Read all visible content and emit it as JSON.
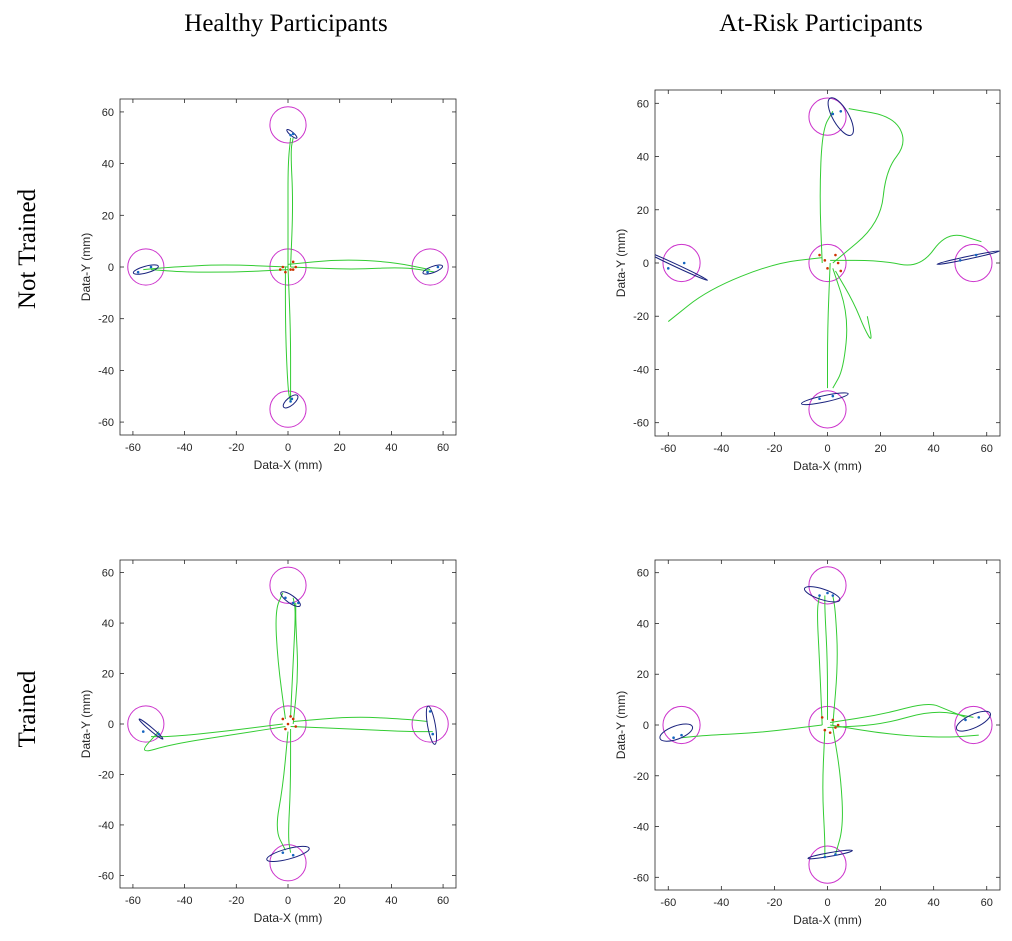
{
  "column_titles": [
    "Healthy Participants",
    "At-Risk Participants"
  ],
  "row_titles": [
    "Not Trained",
    "Trained"
  ],
  "colors": {
    "target_circle": "#cc33cc",
    "trajectory": "#33cc33",
    "ellipse": "#1a237e",
    "points": "#1565c0",
    "center_points": "#cc3300"
  },
  "chart_data": [
    {
      "type": "scatter",
      "panel": "Healthy Participants / Not Trained",
      "xlabel": "Data-X (mm)",
      "ylabel": "Data-Y (mm)",
      "xlim": [
        -65,
        65
      ],
      "ylim": [
        -65,
        65
      ],
      "xticks": [
        -60,
        -40,
        -20,
        0,
        20,
        40,
        60
      ],
      "yticks": [
        -60,
        -40,
        -20,
        0,
        20,
        40,
        60
      ],
      "grid": false,
      "targets": [
        [
          0,
          0
        ],
        [
          0,
          55
        ],
        [
          0,
          -55
        ],
        [
          -55,
          0
        ],
        [
          55,
          0
        ]
      ],
      "target_radius": 7,
      "trajectories": [
        [
          [
            0,
            0
          ],
          [
            0,
            20
          ],
          [
            0,
            40
          ],
          [
            1,
            50
          ]
        ],
        [
          [
            1,
            0
          ],
          [
            2,
            25
          ],
          [
            1,
            45
          ],
          [
            2,
            50
          ]
        ],
        [
          [
            0,
            0
          ],
          [
            1,
            -25
          ],
          [
            1,
            -45
          ],
          [
            1,
            -52
          ]
        ],
        [
          [
            -1,
            0
          ],
          [
            -1,
            -25
          ],
          [
            0,
            -48
          ],
          [
            1,
            -52
          ]
        ],
        [
          [
            0,
            -1
          ],
          [
            -20,
            -2
          ],
          [
            -40,
            -2
          ],
          [
            -53,
            -1
          ]
        ],
        [
          [
            0,
            0
          ],
          [
            -25,
            1
          ],
          [
            -45,
            0
          ],
          [
            -56,
            -1
          ]
        ],
        [
          [
            0,
            1
          ],
          [
            20,
            3
          ],
          [
            40,
            2
          ],
          [
            55,
            -1
          ]
        ],
        [
          [
            1,
            0
          ],
          [
            25,
            -1
          ],
          [
            45,
            0
          ],
          [
            57,
            -2
          ]
        ]
      ],
      "ellipses": [
        {
          "cx": 1.5,
          "cy": 51.5,
          "rx": 2.5,
          "ry": 0.7,
          "angle": -40
        },
        {
          "cx": 1,
          "cy": -52,
          "rx": 3.5,
          "ry": 1.5,
          "angle": 40
        },
        {
          "cx": -55,
          "cy": -1,
          "rx": 5,
          "ry": 1.3,
          "angle": 15
        },
        {
          "cx": 56,
          "cy": -1,
          "rx": 4,
          "ry": 1.2,
          "angle": 20
        }
      ],
      "points": [
        [
          1,
          51
        ],
        [
          2,
          51.5
        ],
        [
          1,
          -52
        ],
        [
          1.5,
          -51
        ],
        [
          -58,
          -2
        ],
        [
          -53,
          0
        ],
        [
          54,
          -2
        ],
        [
          58,
          0
        ]
      ],
      "center_points": [
        [
          -2,
          0
        ],
        [
          2,
          2
        ],
        [
          1,
          -1
        ],
        [
          -1,
          -2
        ],
        [
          2,
          -1
        ],
        [
          3,
          0
        ],
        [
          -3,
          -1
        ]
      ]
    },
    {
      "type": "scatter",
      "panel": "At-Risk Participants / Not Trained",
      "xlabel": "Data-X (mm)",
      "ylabel": "Data-Y (mm)",
      "xlim": [
        -65,
        65
      ],
      "ylim": [
        -65,
        65
      ],
      "xticks": [
        -60,
        -40,
        -20,
        0,
        20,
        40,
        60
      ],
      "yticks": [
        -60,
        -40,
        -20,
        0,
        20,
        40,
        60
      ],
      "grid": false,
      "targets": [
        [
          0,
          0
        ],
        [
          0,
          55
        ],
        [
          0,
          -55
        ],
        [
          -55,
          0
        ],
        [
          55,
          0
        ]
      ],
      "target_radius": 7,
      "trajectories": [
        [
          [
            -2,
            0
          ],
          [
            -3,
            25
          ],
          [
            -2,
            50
          ],
          [
            2,
            57
          ]
        ],
        [
          [
            2,
            0
          ],
          [
            20,
            15
          ],
          [
            22,
            35
          ],
          [
            30,
            45
          ],
          [
            25,
            55
          ],
          [
            8,
            58
          ]
        ],
        [
          [
            1,
            0
          ],
          [
            0,
            -25
          ],
          [
            0,
            -47
          ]
        ],
        [
          [
            2,
            -2
          ],
          [
            8,
            -20
          ],
          [
            6,
            -40
          ],
          [
            2,
            -47
          ]
        ],
        [
          [
            -2,
            2
          ],
          [
            -20,
            0
          ],
          [
            -45,
            -10
          ],
          [
            -60,
            -22
          ]
        ],
        [
          [
            3,
            -3
          ],
          [
            10,
            -15
          ],
          [
            14,
            -25
          ],
          [
            17,
            -30
          ],
          [
            15,
            -20
          ]
        ],
        [
          [
            1,
            1
          ],
          [
            20,
            1
          ],
          [
            35,
            -2
          ],
          [
            45,
            12
          ],
          [
            58,
            8
          ]
        ]
      ],
      "ellipses": [
        {
          "cx": 5,
          "cy": 55,
          "rx": 8,
          "ry": 3,
          "angle": -60
        },
        {
          "cx": -1,
          "cy": -51,
          "rx": 9,
          "ry": 1.2,
          "angle": 12
        },
        {
          "cx": -57,
          "cy": -1,
          "rx": 13,
          "ry": 0.5,
          "angle": -25
        },
        {
          "cx": 53,
          "cy": 2,
          "rx": 12,
          "ry": 0.5,
          "angle": 12
        }
      ],
      "points": [
        [
          2,
          56
        ],
        [
          5,
          57
        ],
        [
          -3,
          -51
        ],
        [
          2,
          -50
        ],
        [
          -60,
          -2
        ],
        [
          -54,
          0
        ],
        [
          50,
          1
        ],
        [
          56,
          3
        ]
      ],
      "center_points": [
        [
          -3,
          3
        ],
        [
          0,
          -2
        ],
        [
          3,
          3
        ],
        [
          5,
          -3
        ],
        [
          -1,
          1
        ],
        [
          4,
          0
        ]
      ]
    },
    {
      "type": "scatter",
      "panel": "Healthy Participants / Trained",
      "xlabel": "Data-X (mm)",
      "ylabel": "Data-Y (mm)",
      "xlim": [
        -65,
        65
      ],
      "ylim": [
        -65,
        65
      ],
      "xticks": [
        -60,
        -40,
        -20,
        0,
        20,
        40,
        60
      ],
      "yticks": [
        -60,
        -40,
        -20,
        0,
        20,
        40,
        60
      ],
      "grid": false,
      "targets": [
        [
          0,
          0
        ],
        [
          0,
          55
        ],
        [
          0,
          -55
        ],
        [
          -55,
          0
        ],
        [
          55,
          0
        ]
      ],
      "target_radius": 7,
      "trajectories": [
        [
          [
            -1,
            2
          ],
          [
            -4,
            25
          ],
          [
            -5,
            45
          ],
          [
            -2,
            52
          ]
        ],
        [
          [
            1,
            3
          ],
          [
            2,
            25
          ],
          [
            3,
            45
          ],
          [
            2,
            50
          ]
        ],
        [
          [
            2,
            0
          ],
          [
            4,
            20
          ],
          [
            3,
            40
          ],
          [
            3,
            48
          ]
        ],
        [
          [
            0,
            -3
          ],
          [
            -2,
            -25
          ],
          [
            -5,
            -42
          ],
          [
            -1,
            -50
          ]
        ],
        [
          [
            1,
            -2
          ],
          [
            1,
            -25
          ],
          [
            0,
            -45
          ],
          [
            1,
            -51
          ]
        ],
        [
          [
            -2,
            0
          ],
          [
            -25,
            -3
          ],
          [
            -45,
            -5
          ],
          [
            -53,
            -5
          ]
        ],
        [
          [
            -1,
            -1
          ],
          [
            -20,
            -4
          ],
          [
            -45,
            -8
          ],
          [
            -58,
            -12
          ],
          [
            -50,
            -3
          ]
        ],
        [
          [
            2,
            1
          ],
          [
            25,
            3
          ],
          [
            45,
            2
          ],
          [
            54,
            1
          ]
        ],
        [
          [
            1,
            -1
          ],
          [
            25,
            -2
          ],
          [
            45,
            -3
          ],
          [
            56,
            -3
          ]
        ]
      ],
      "ellipses": [
        {
          "cx": 1,
          "cy": 49.5,
          "rx": 4.5,
          "ry": 1.5,
          "angle": -35
        },
        {
          "cx": 0,
          "cy": -51.5,
          "rx": 8.5,
          "ry": 2,
          "angle": 15
        },
        {
          "cx": -53,
          "cy": -2,
          "rx": 6,
          "ry": 0.6,
          "angle": -40
        },
        {
          "cx": 55.5,
          "cy": -0.5,
          "rx": 7.5,
          "ry": 1.5,
          "angle": -80
        }
      ],
      "points": [
        [
          -1,
          50
        ],
        [
          2,
          48
        ],
        [
          4,
          48
        ],
        [
          -2,
          -51
        ],
        [
          2,
          -52
        ],
        [
          -56,
          -3
        ],
        [
          -50,
          -4
        ],
        [
          55,
          5
        ],
        [
          56,
          -4
        ]
      ],
      "center_points": [
        [
          -2,
          2
        ],
        [
          1,
          3
        ],
        [
          3,
          -1
        ],
        [
          -1,
          -2
        ],
        [
          2,
          2
        ],
        [
          0,
          0
        ]
      ]
    },
    {
      "type": "scatter",
      "panel": "At-Risk Participants / Trained",
      "xlabel": "Data-X (mm)",
      "ylabel": "Data-Y (mm)",
      "xlim": [
        -65,
        65
      ],
      "ylim": [
        -65,
        65
      ],
      "xticks": [
        -60,
        -40,
        -20,
        0,
        20,
        40,
        60
      ],
      "yticks": [
        -60,
        -40,
        -20,
        0,
        20,
        40,
        60
      ],
      "grid": false,
      "targets": [
        [
          0,
          0
        ],
        [
          0,
          55
        ],
        [
          0,
          -55
        ],
        [
          -55,
          0
        ],
        [
          55,
          0
        ]
      ],
      "target_radius": 7,
      "trajectories": [
        [
          [
            -2,
            0
          ],
          [
            -3,
            25
          ],
          [
            -4,
            45
          ],
          [
            -3,
            51
          ]
        ],
        [
          [
            0,
            2
          ],
          [
            0,
            25
          ],
          [
            -1,
            45
          ],
          [
            -1,
            51
          ]
        ],
        [
          [
            2,
            0
          ],
          [
            4,
            25
          ],
          [
            3,
            45
          ],
          [
            2,
            51
          ]
        ],
        [
          [
            -1,
            -2
          ],
          [
            -2,
            -25
          ],
          [
            -1,
            -45
          ],
          [
            -1,
            -52
          ]
        ],
        [
          [
            2,
            -1
          ],
          [
            5,
            -20
          ],
          [
            6,
            -40
          ],
          [
            3,
            -51
          ]
        ],
        [
          [
            -2,
            0
          ],
          [
            -25,
            -3
          ],
          [
            -45,
            -4
          ],
          [
            -55,
            -5
          ]
        ],
        [
          [
            1,
            1
          ],
          [
            20,
            4
          ],
          [
            38,
            9
          ],
          [
            45,
            6
          ],
          [
            52,
            3
          ]
        ],
        [
          [
            0,
            -1
          ],
          [
            20,
            0
          ],
          [
            40,
            6
          ],
          [
            55,
            3
          ]
        ],
        [
          [
            1,
            0
          ],
          [
            25,
            -4
          ],
          [
            45,
            -5
          ],
          [
            57,
            -4
          ]
        ]
      ],
      "ellipses": [
        {
          "cx": -2,
          "cy": 51.5,
          "rx": 7,
          "ry": 2,
          "angle": -18
        },
        {
          "cx": 1,
          "cy": -51,
          "rx": 8.5,
          "ry": 0.7,
          "angle": 10
        },
        {
          "cx": -57,
          "cy": -3,
          "rx": 6.5,
          "ry": 2.5,
          "angle": 20
        },
        {
          "cx": 55,
          "cy": 1.5,
          "rx": 7,
          "ry": 2.5,
          "angle": 25
        }
      ],
      "points": [
        [
          -3,
          51
        ],
        [
          0,
          52
        ],
        [
          2,
          51
        ],
        [
          -1,
          -52
        ],
        [
          3,
          -51
        ],
        [
          -58,
          -5
        ],
        [
          -55,
          -4
        ],
        [
          52,
          2
        ],
        [
          57,
          3
        ]
      ],
      "center_points": [
        [
          -2,
          3
        ],
        [
          2,
          2
        ],
        [
          4,
          0
        ],
        [
          -1,
          -2
        ],
        [
          1,
          -3
        ],
        [
          3,
          -1
        ]
      ]
    }
  ]
}
